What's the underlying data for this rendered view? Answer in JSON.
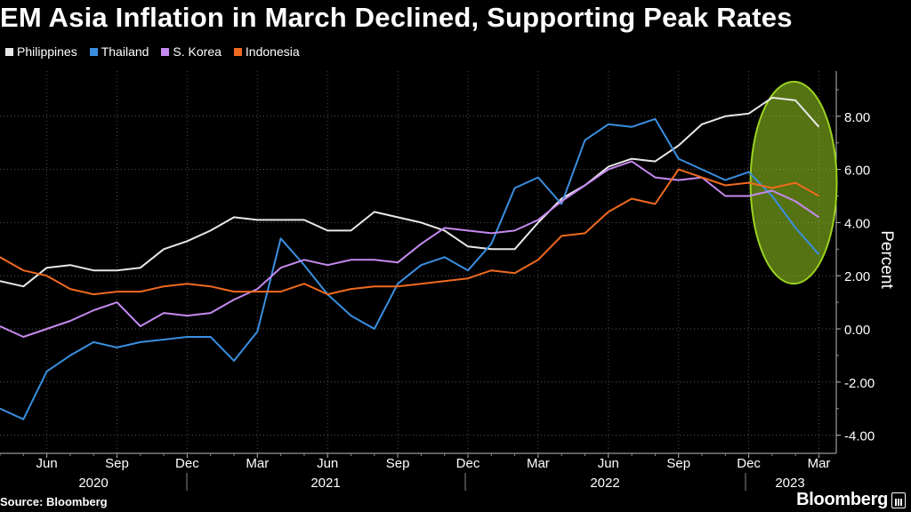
{
  "chart_data": {
    "type": "line",
    "title": "EM Asia Inflation in March Declined, Supporting Peak Rates",
    "ylabel": "Percent",
    "ylim": [
      -4.5,
      9.5
    ],
    "y_ticks": [
      8,
      6,
      4,
      2,
      0,
      -2,
      -4
    ],
    "y_tick_labels": [
      "8.00",
      "6.00",
      "4.00",
      "2.00",
      "0.00",
      "-2.00",
      "-4.00"
    ],
    "grid": true,
    "legend_position": "top-left",
    "x_start": "2020-04",
    "x_end": "2023-03",
    "month_tick_labels": [
      {
        "label": "Jun",
        "date": "2020-06"
      },
      {
        "label": "Sep",
        "date": "2020-09"
      },
      {
        "label": "Dec",
        "date": "2020-12"
      },
      {
        "label": "Mar",
        "date": "2021-03"
      },
      {
        "label": "Jun",
        "date": "2021-06"
      },
      {
        "label": "Sep",
        "date": "2021-09"
      },
      {
        "label": "Dec",
        "date": "2021-12"
      },
      {
        "label": "Mar",
        "date": "2022-03"
      },
      {
        "label": "Jun",
        "date": "2022-06"
      },
      {
        "label": "Sep",
        "date": "2022-09"
      },
      {
        "label": "Dec",
        "date": "2022-12"
      },
      {
        "label": "Mar",
        "date": "2023-03"
      }
    ],
    "year_labels": [
      "2020",
      "2021",
      "2022",
      "2023"
    ],
    "x": [
      "2020-04",
      "2020-05",
      "2020-06",
      "2020-07",
      "2020-08",
      "2020-09",
      "2020-10",
      "2020-11",
      "2020-12",
      "2021-01",
      "2021-02",
      "2021-03",
      "2021-04",
      "2021-05",
      "2021-06",
      "2021-07",
      "2021-08",
      "2021-09",
      "2021-10",
      "2021-11",
      "2021-12",
      "2022-01",
      "2022-02",
      "2022-03",
      "2022-04",
      "2022-05",
      "2022-06",
      "2022-07",
      "2022-08",
      "2022-09",
      "2022-10",
      "2022-11",
      "2022-12",
      "2023-01",
      "2023-02",
      "2023-03"
    ],
    "series": [
      {
        "name": "Philippines",
        "color": "#e8e8e8",
        "values": [
          1.8,
          1.6,
          2.3,
          2.4,
          2.2,
          2.2,
          2.3,
          3.0,
          3.3,
          3.7,
          4.2,
          4.1,
          4.1,
          4.1,
          3.7,
          3.7,
          4.4,
          4.2,
          4.0,
          3.7,
          3.1,
          3.0,
          3.0,
          4.0,
          4.9,
          5.4,
          6.1,
          6.4,
          6.3,
          6.9,
          7.7,
          8.0,
          8.1,
          8.7,
          8.6,
          7.6
        ]
      },
      {
        "name": "Thailand",
        "color": "#3a8fe0",
        "values": [
          -3.0,
          -3.4,
          -1.6,
          -1.0,
          -0.5,
          -0.7,
          -0.5,
          -0.4,
          -0.3,
          -0.3,
          -1.2,
          -0.1,
          3.4,
          2.4,
          1.3,
          0.5,
          0.0,
          1.7,
          2.4,
          2.7,
          2.2,
          3.2,
          5.3,
          5.7,
          4.7,
          7.1,
          7.7,
          7.6,
          7.9,
          6.4,
          6.0,
          5.6,
          5.9,
          5.0,
          3.8,
          2.8
        ]
      },
      {
        "name": "S. Korea",
        "color": "#c58af0",
        "values": [
          0.1,
          -0.3,
          0.0,
          0.3,
          0.7,
          1.0,
          0.1,
          0.6,
          0.5,
          0.6,
          1.1,
          1.5,
          2.3,
          2.6,
          2.4,
          2.6,
          2.6,
          2.5,
          3.2,
          3.8,
          3.7,
          3.6,
          3.7,
          4.1,
          4.8,
          5.4,
          6.0,
          6.3,
          5.7,
          5.6,
          5.7,
          5.0,
          5.0,
          5.2,
          4.8,
          4.2
        ]
      },
      {
        "name": "Indonesia",
        "color": "#f06a1e",
        "values": [
          2.7,
          2.2,
          2.0,
          1.5,
          1.3,
          1.4,
          1.4,
          1.6,
          1.7,
          1.6,
          1.4,
          1.4,
          1.4,
          1.7,
          1.3,
          1.5,
          1.6,
          1.6,
          1.7,
          1.8,
          1.9,
          2.2,
          2.1,
          2.6,
          3.5,
          3.6,
          4.4,
          4.9,
          4.7,
          6.0,
          5.7,
          5.4,
          5.5,
          5.3,
          5.5,
          5.0
        ]
      }
    ],
    "annotation": {
      "type": "highlight-ellipse",
      "color": "#9bd221",
      "x_from": "2022-12",
      "x_to": "2023-03",
      "y_from": 1.7,
      "y_to": 9.3
    }
  },
  "footer": {
    "source": "Source: Bloomberg",
    "brand": "Bloomberg"
  }
}
